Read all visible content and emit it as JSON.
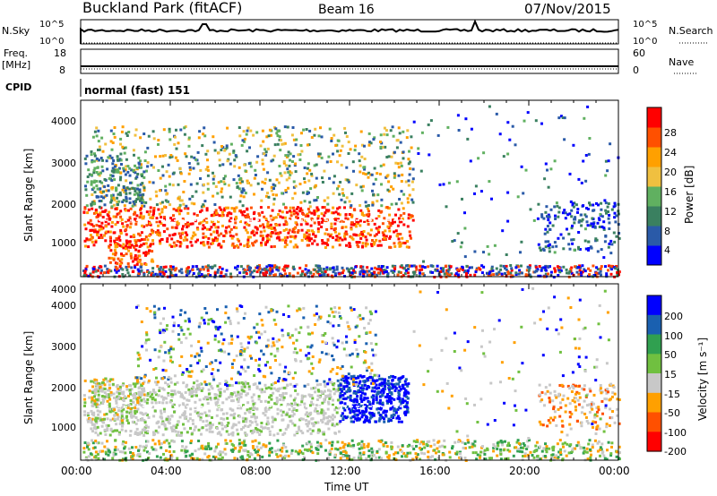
{
  "header": {
    "station": "Buckland Park (fitACF)",
    "beam": "Beam 16",
    "date": "07/Nov/2015"
  },
  "status_panels": {
    "nsky_label": "N.Sky",
    "nsearch_label": "N.Search",
    "noise_ticks": [
      "10^5",
      "10^0"
    ],
    "freq_label": "Freq.",
    "freq_units": "[MHz]",
    "freq_ticks": [
      "18",
      "8"
    ],
    "nave_label": "Nave",
    "nave_ticks": [
      "60",
      "0"
    ],
    "cpid_label": "CPID",
    "cpid_value": "normal (fast) 151"
  },
  "colors": {
    "power_scale": [
      "#0000ff",
      "#2a5aa8",
      "#3a8060",
      "#60b060",
      "#f0c040",
      "#ffa000",
      "#ff5000",
      "#ff0000"
    ],
    "velocity_scale": [
      "#0000ff",
      "#1a60b0",
      "#30a050",
      "#70c040",
      "#c8c8c8",
      "#ffa000",
      "#ff5000",
      "#ff0000"
    ]
  },
  "chart_data": [
    {
      "type": "heatmap",
      "panel": "power",
      "ylabel": "Slant Range [km]",
      "yticks": [
        "4000",
        "3000",
        "2000",
        "1000"
      ],
      "ylim": [
        180,
        4500
      ],
      "xlim": [
        "00:00",
        "24:00"
      ],
      "colorbar_label": "Power [dB]",
      "colorbar_ticks": [
        "28",
        "24",
        "20",
        "16",
        "12",
        "8",
        "4"
      ],
      "clim": [
        0,
        32
      ]
    },
    {
      "type": "heatmap",
      "panel": "velocity",
      "ylabel": "Slant Range [km]",
      "yticks": [
        "4000",
        "3000",
        "2000",
        "1000"
      ],
      "ylim": [
        180,
        4500
      ],
      "xlabel": "Time UT",
      "xticks": [
        "00:00",
        "04:00",
        "08:00",
        "12:00",
        "16:00",
        "20:00",
        "00:00"
      ],
      "xlim": [
        "00:00",
        "24:00"
      ],
      "colorbar_label": "Velocity [m s⁻¹]",
      "colorbar_ticks": [
        "200",
        "100",
        "50",
        "15",
        "-15",
        "-50",
        "-100",
        "-200"
      ],
      "clim": [
        -250,
        250
      ]
    }
  ]
}
